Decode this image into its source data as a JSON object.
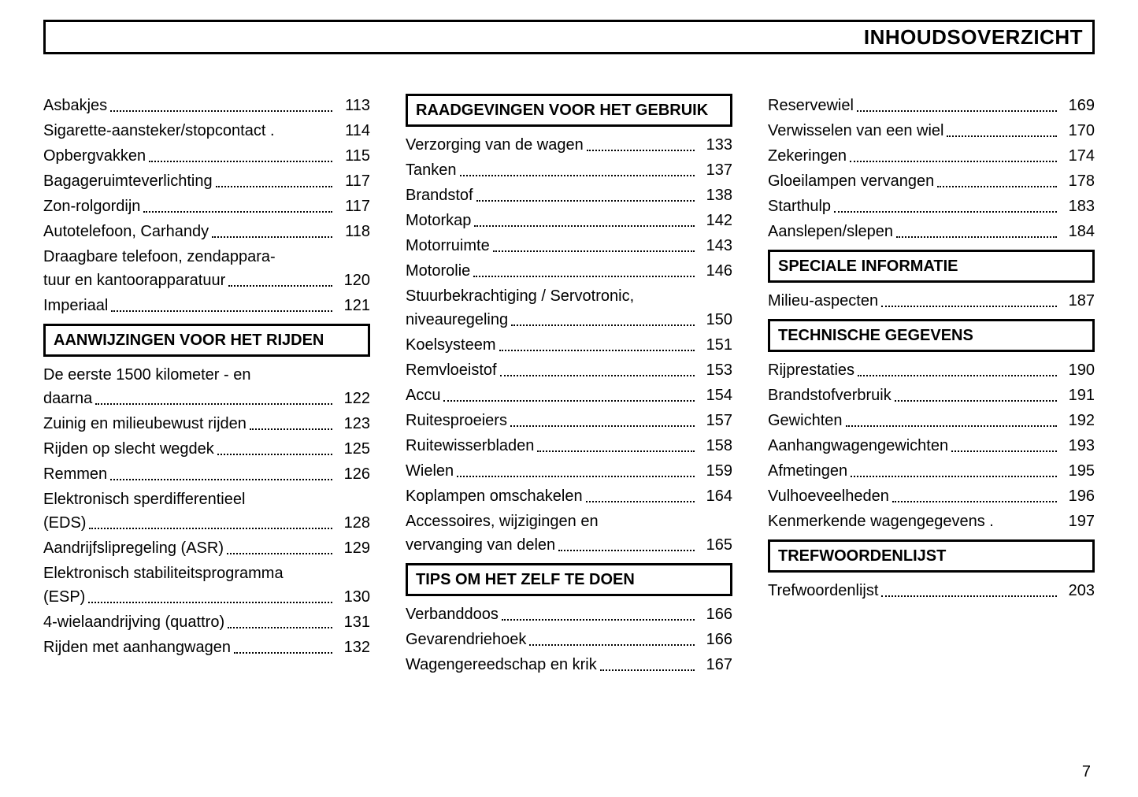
{
  "header": {
    "title": "INHOUDSOVERZICHT"
  },
  "page_number": "7",
  "col1": {
    "items_top": [
      {
        "label": "Asbakjes",
        "page": "113"
      },
      {
        "label": "Sigarette-aansteker/stopcontact .",
        "page": "114",
        "nodots": true
      },
      {
        "label": "Opbergvakken",
        "page": "115"
      },
      {
        "label": "Bagageruimteverlichting",
        "page": "117"
      },
      {
        "label": "Zon-rolgordijn",
        "page": "117"
      },
      {
        "label": "Autotelefoon, Carhandy",
        "page": "118"
      },
      {
        "label_line1": "Draagbare telefoon, zendappara-",
        "label_line2": "tuur en kantoorapparatuur",
        "page": "120",
        "multiline": true
      },
      {
        "label": "Imperiaal",
        "page": "121"
      }
    ],
    "section1": {
      "title": "AANWIJZINGEN VOOR HET RIJDEN"
    },
    "items_sec1": [
      {
        "label_line1": "De eerste 1500 kilometer - en",
        "label_line2": "daarna",
        "page": "122",
        "multiline": true
      },
      {
        "label": "Zuinig en milieubewust rijden",
        "page": "123"
      },
      {
        "label": "Rijden op slecht wegdek",
        "page": "125"
      },
      {
        "label": "Remmen",
        "page": "126"
      },
      {
        "label_line1": "Elektronisch sperdifferentieel",
        "label_line2": "(EDS)",
        "page": "128",
        "multiline": true
      },
      {
        "label": "Aandrijfslipregeling (ASR)",
        "page": "129"
      },
      {
        "label_line1": "Elektronisch stabiliteitsprogramma",
        "label_line2": "(ESP)",
        "page": "130",
        "multiline": true
      },
      {
        "label": "4-wielaandrijving (quattro)",
        "page": "131"
      },
      {
        "label": "Rijden met aanhangwagen",
        "page": "132"
      }
    ]
  },
  "col2": {
    "section1": {
      "title": "RAADGEVINGEN VOOR HET GEBRUIK"
    },
    "items_sec1": [
      {
        "label": "Verzorging van de wagen",
        "page": "133"
      },
      {
        "label": "Tanken",
        "page": "137"
      },
      {
        "label": "Brandstof",
        "page": "138"
      },
      {
        "label": "Motorkap",
        "page": "142"
      },
      {
        "label": "Motorruimte",
        "page": "143"
      },
      {
        "label": "Motorolie",
        "page": "146"
      },
      {
        "label_line1": "Stuurbekrachtiging / Servotronic,",
        "label_line2": "niveauregeling",
        "page": "150",
        "multiline": true
      },
      {
        "label": "Koelsysteem",
        "page": "151"
      },
      {
        "label": "Remvloeistof",
        "page": "153"
      },
      {
        "label": "Accu",
        "page": "154"
      },
      {
        "label": "Ruitesproeiers",
        "page": "157"
      },
      {
        "label": "Ruitewisserbladen",
        "page": "158"
      },
      {
        "label": "Wielen",
        "page": "159"
      },
      {
        "label": "Koplampen omschakelen",
        "page": "164"
      },
      {
        "label_line1": "Accessoires, wijzigingen en",
        "label_line2": "vervanging van delen",
        "page": "165",
        "multiline": true
      }
    ],
    "section2": {
      "title": "TIPS OM HET ZELF TE DOEN"
    },
    "items_sec2": [
      {
        "label": "Verbanddoos",
        "page": "166"
      },
      {
        "label": "Gevarendriehoek",
        "page": "166"
      },
      {
        "label": "Wagengereedschap en krik",
        "page": "167"
      }
    ]
  },
  "col3": {
    "items_top": [
      {
        "label": "Reservewiel",
        "page": "169"
      },
      {
        "label": "Verwisselen van een wiel",
        "page": "170"
      },
      {
        "label": "Zekeringen",
        "page": "174"
      },
      {
        "label": "Gloeilampen vervangen",
        "page": "178"
      },
      {
        "label": "Starthulp",
        "page": "183"
      },
      {
        "label": "Aanslepen/slepen",
        "page": "184"
      }
    ],
    "section1": {
      "title": "SPECIALE INFORMATIE"
    },
    "items_sec1": [
      {
        "label": "Milieu-aspecten",
        "page": "187"
      }
    ],
    "section2": {
      "title": "TECHNISCHE GEGEVENS"
    },
    "items_sec2": [
      {
        "label": "Rijprestaties",
        "page": "190"
      },
      {
        "label": "Brandstofverbruik",
        "page": "191"
      },
      {
        "label": "Gewichten",
        "page": "192"
      },
      {
        "label": "Aanhangwagengewichten",
        "page": "193"
      },
      {
        "label": "Afmetingen",
        "page": "195"
      },
      {
        "label": "Vulhoeveelheden",
        "page": "196"
      },
      {
        "label": "Kenmerkende wagengegevens .",
        "page": "197",
        "nodots": true
      }
    ],
    "section3": {
      "title": "TREFWOORDENLIJST"
    },
    "items_sec3": [
      {
        "label": "Trefwoordenlijst",
        "page": "203"
      }
    ]
  }
}
